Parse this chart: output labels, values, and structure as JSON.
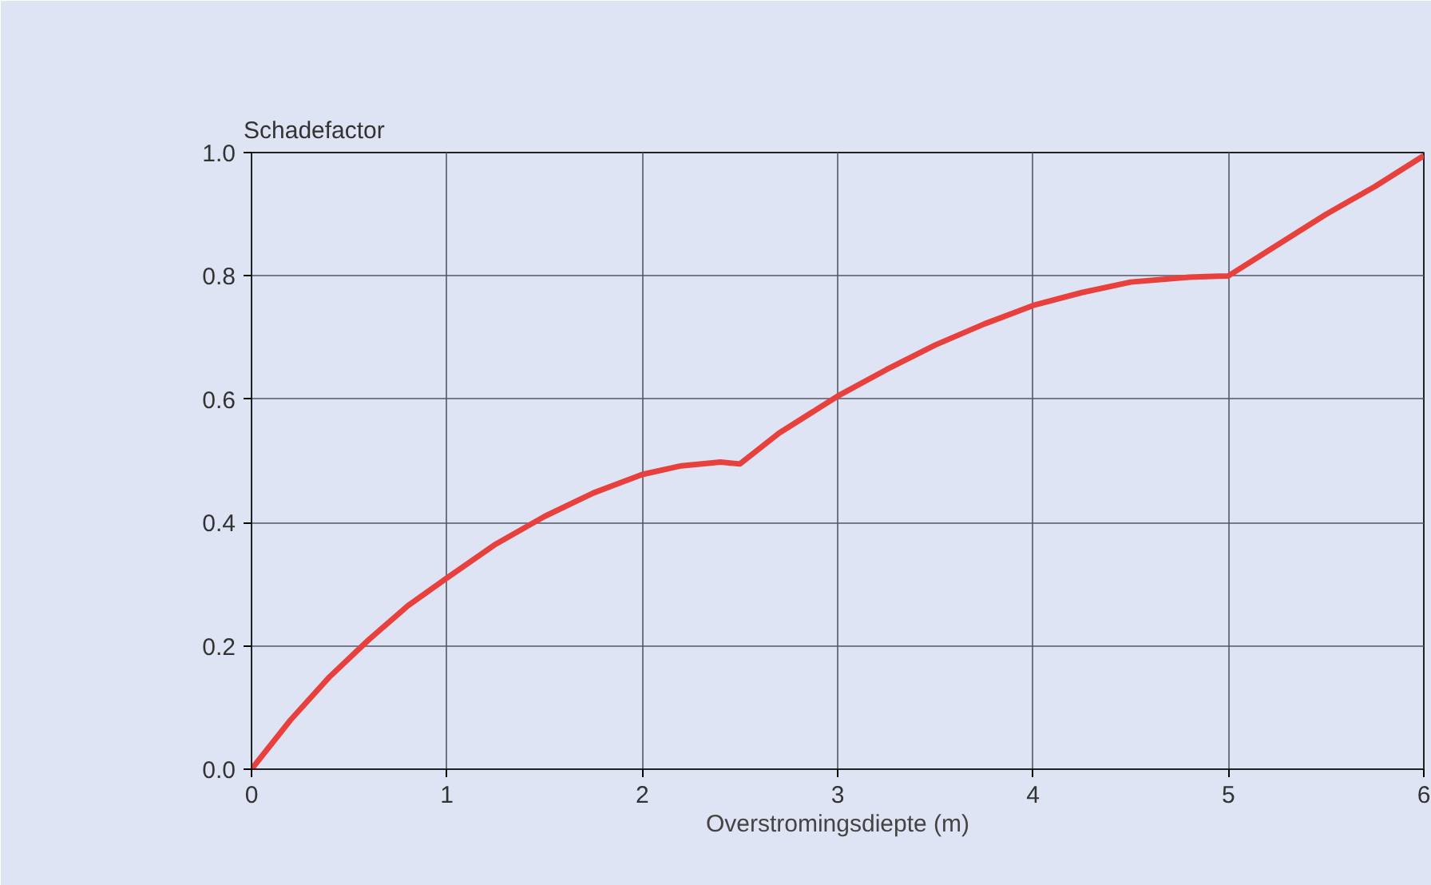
{
  "chart_data": {
    "type": "line",
    "ylabel": "Schadefactor",
    "xlabel": "Overstromingsdiepte (m)",
    "x": [
      0,
      0.2,
      0.4,
      0.6,
      0.8,
      1,
      1.25,
      1.5,
      1.75,
      2,
      2.2,
      2.4,
      2.5,
      2.7,
      3,
      3.25,
      3.5,
      3.75,
      4,
      4.25,
      4.5,
      4.8,
      5,
      5.25,
      5.5,
      5.75,
      6
    ],
    "series": [
      {
        "color": "#e8403c",
        "values": [
          0,
          0.08,
          0.15,
          0.21,
          0.265,
          0.31,
          0.365,
          0.41,
          0.448,
          0.478,
          0.492,
          0.498,
          0.495,
          0.545,
          0.605,
          0.648,
          0.688,
          0.722,
          0.752,
          0.773,
          0.79,
          0.798,
          0.8,
          0.85,
          0.9,
          0.945,
          0.995
        ]
      }
    ],
    "xlim": [
      0,
      6
    ],
    "ylim": [
      0,
      1
    ],
    "xticks": [
      0,
      1,
      2,
      3,
      4,
      5,
      6
    ],
    "yticks": [
      {
        "value": 0,
        "label": "0.0"
      },
      {
        "value": 0.2,
        "label": "0.2"
      },
      {
        "value": 0.4,
        "label": "0.4"
      },
      {
        "value": 0.6,
        "label": "0.6"
      },
      {
        "value": 0.8,
        "label": "0.8"
      },
      {
        "value": 1,
        "label": "1.0"
      }
    ],
    "grid": true,
    "marker": "none",
    "line_style": "solid"
  }
}
